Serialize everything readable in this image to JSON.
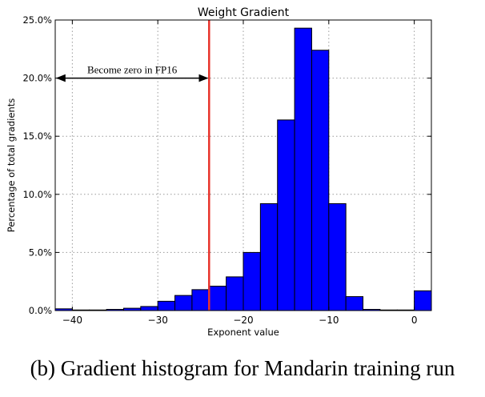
{
  "chart_data": {
    "type": "bar",
    "title": "Weight Gradient",
    "xlabel": "Exponent value",
    "ylabel": "Percentage of total gradients",
    "xlim": [
      -42,
      2
    ],
    "ylim": [
      0,
      25
    ],
    "bin_width": 2,
    "bins": [
      {
        "x": -42,
        "value": 0.15
      },
      {
        "x": -40,
        "value": 0.05
      },
      {
        "x": -38,
        "value": 0.05
      },
      {
        "x": -36,
        "value": 0.1
      },
      {
        "x": -34,
        "value": 0.2
      },
      {
        "x": -32,
        "value": 0.35
      },
      {
        "x": -30,
        "value": 0.8
      },
      {
        "x": -28,
        "value": 1.3
      },
      {
        "x": -26,
        "value": 1.8
      },
      {
        "x": -24,
        "value": 2.1
      },
      {
        "x": -22,
        "value": 2.9
      },
      {
        "x": -20,
        "value": 5.0
      },
      {
        "x": -18,
        "value": 9.2
      },
      {
        "x": -16,
        "value": 16.4
      },
      {
        "x": -14,
        "value": 24.3
      },
      {
        "x": -12,
        "value": 22.4
      },
      {
        "x": -10,
        "value": 9.2
      },
      {
        "x": -8,
        "value": 1.2
      },
      {
        "x": -6,
        "value": 0.1
      },
      {
        "x": -4,
        "value": 0.05
      },
      {
        "x": -2,
        "value": 0.05
      },
      {
        "x": 0,
        "value": 1.7
      }
    ],
    "x_ticks": [
      {
        "value": -40,
        "label": "−40"
      },
      {
        "value": -30,
        "label": "−30"
      },
      {
        "value": -20,
        "label": "−20"
      },
      {
        "value": -10,
        "label": "−10"
      },
      {
        "value": 0,
        "label": "0"
      }
    ],
    "y_ticks": [
      {
        "value": 0,
        "label": "0.0%"
      },
      {
        "value": 5,
        "label": "5.0%"
      },
      {
        "value": 10,
        "label": "10.0%"
      },
      {
        "value": 15,
        "label": "15.0%"
      },
      {
        "value": 20,
        "label": "20.0%"
      },
      {
        "value": 25,
        "label": "25.0%"
      }
    ],
    "grid": true,
    "reference_line": {
      "x": -24,
      "color": "#e8342c"
    },
    "annotation": {
      "text": "Become zero in FP16",
      "from_x": -42,
      "to_x": -24,
      "y": 20
    },
    "bar_color": "#0000ff"
  },
  "caption": "(b) Gradient histogram for Mandarin training run"
}
